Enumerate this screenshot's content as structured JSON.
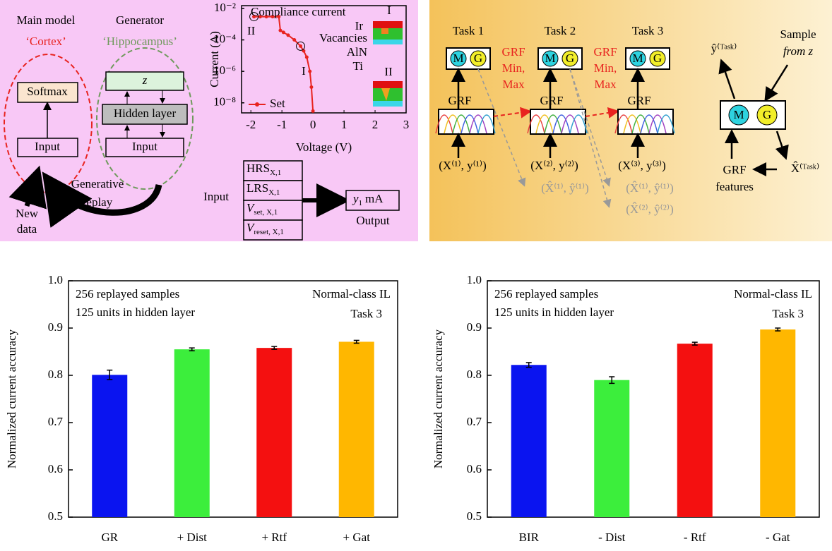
{
  "cortex_diagram": {
    "main_model": "Main model",
    "cortex": "‘Cortex’",
    "generator": "Generator",
    "hippocampus": "‘Hippocampus’",
    "softmax": "Softmax",
    "input_main": "Input",
    "z": "z",
    "hidden_layer": "Hidden layer",
    "input_gen": "Input",
    "generative_replay": [
      "Generative",
      "replay"
    ],
    "new_data": [
      "New",
      "data"
    ]
  },
  "io_diagram": {
    "inputs": [
      {
        "main": "HRS",
        "sub": "X,1"
      },
      {
        "main": "LRS",
        "sub": "X,1"
      },
      {
        "main": "V",
        "sub": "set, X,1"
      },
      {
        "main": "V",
        "sub": "reset, X,1"
      }
    ],
    "input_label": "Input",
    "output": {
      "main": "y",
      "sub": "1",
      "unit": "mA"
    },
    "output_label": "Output"
  },
  "task_diagram": {
    "tasks": [
      "Task 1",
      "Task 2",
      "Task 3"
    ],
    "m": "M",
    "g": "G",
    "grf": "GRF",
    "grf_minmax": [
      "GRF",
      "Min,",
      "Max"
    ],
    "inputs": [
      "(X⁽¹⁾, y⁽¹⁾)",
      "(X⁽²⁾, y⁽²⁾)",
      "(X⁽³⁾, y⁽³⁾)"
    ],
    "replayed": [
      "(X̂⁽¹⁾, ŷ⁽¹⁾)",
      "(X̂⁽¹⁾, ŷ⁽¹⁾)",
      "(X̂⁽²⁾, ŷ⁽²⁾)"
    ],
    "y_hat_task": "ŷ⁽ᵀᵃˢᵏ⁾",
    "x_hat_task": "X̂⁽ᵀᵃˢᵏ⁾",
    "sample_from": [
      "Sample",
      "from z"
    ],
    "grf_features": [
      "GRF",
      "features"
    ]
  },
  "chart_data": [
    {
      "type": "line",
      "x_label": "Voltage (V)",
      "y_label": "Current (A)",
      "ylog": true,
      "x": [
        -1.9,
        -1.7,
        -1.5,
        -1.3,
        -1.1,
        -1.05,
        -0.95,
        -0.8,
        -0.6,
        -0.4,
        -0.3,
        -0.2,
        -0.1,
        -0.05,
        0
      ],
      "series": [
        {
          "name": "Set",
          "color": "#e8231f",
          "values": [
            0.003,
            0.003,
            0.003,
            0.003,
            0.003,
            0.0004,
            0.0003,
            0.0002,
            0.0001,
            4e-05,
            2e-05,
            8e-06,
            1e-06,
            1e-07,
            3e-09
          ]
        }
      ],
      "xlim": [
        -2.3,
        3
      ],
      "xticks": [
        -2,
        -1,
        0,
        1,
        2,
        3
      ],
      "ylim": [
        2.3e-09,
        0.015
      ],
      "yticks": [
        {
          "value": 1e-08,
          "label": "10⁻⁸"
        },
        {
          "value": 1e-06,
          "label": "10⁻⁶"
        },
        {
          "value": 0.0001,
          "label": "10⁻⁴"
        },
        {
          "value": 0.01,
          "label": "10⁻²"
        }
      ],
      "annotations": [
        "Compliance current",
        "I",
        "II",
        "I",
        "Ir",
        "Vacancies",
        "AlN",
        "Ti",
        "II"
      ],
      "grid": false
    },
    {
      "type": "bar",
      "y_label": "Normalized current accuracy",
      "categories": [
        "GR",
        "+ Dist",
        "+ Rtf",
        "+ Gat"
      ],
      "values": [
        0.801,
        0.855,
        0.858,
        0.871
      ],
      "errors": [
        0.01,
        0.003,
        0.003,
        0.003
      ],
      "colors": [
        "#0a14f0",
        "#3cee3c",
        "#f41010",
        "#ffb700"
      ],
      "ylim": [
        0.5,
        1
      ],
      "yticks": [
        0.5,
        0.6,
        0.7,
        0.8,
        0.9,
        {
          "value": 1,
          "label": "1.0"
        }
      ],
      "annotations": [
        "256 replayed samples",
        "125 units in hidden layer",
        "Normal-class IL",
        "Task 3"
      ],
      "grid": false
    },
    {
      "type": "bar",
      "y_label": "Normalized current accuracy",
      "categories": [
        "BIR",
        "- Dist",
        "- Rtf",
        "- Gat"
      ],
      "values": [
        0.822,
        0.79,
        0.867,
        0.897
      ],
      "errors": [
        0.005,
        0.007,
        0.003,
        0.003
      ],
      "colors": [
        "#0a14f0",
        "#3cee3c",
        "#f41010",
        "#ffb700"
      ],
      "ylim": [
        0.5,
        1
      ],
      "yticks": [
        0.5,
        0.6,
        0.7,
        0.8,
        0.9,
        {
          "value": 1,
          "label": "1.0"
        }
      ],
      "annotations": [
        "256 replayed samples",
        "125 units in hidden layer",
        "Normal-class IL",
        "Task 3"
      ],
      "grid": false
    }
  ]
}
